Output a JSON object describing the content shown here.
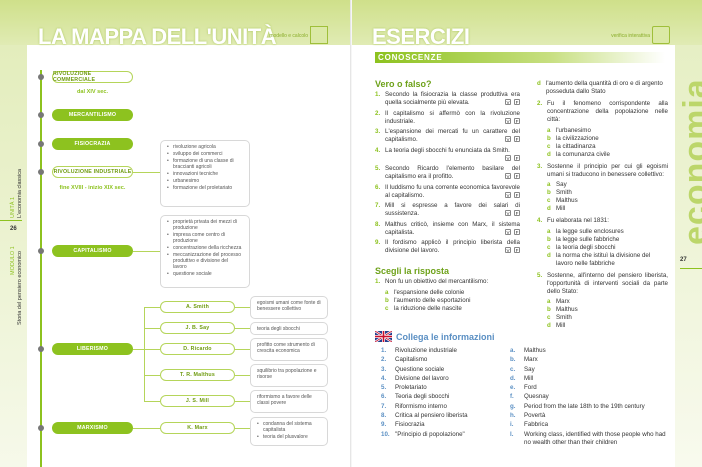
{
  "left": {
    "title": "LA MAPPA DELL'UNITÀ",
    "header_icon_label": "modello e calcolo",
    "page_number": "26",
    "unit": "UNITÀ 1",
    "unit_title": "L'economia classica",
    "module": "MODULO 1",
    "module_title": "Storia del pensiero economico",
    "map": {
      "rivoluzione_commerciale": "RIVOLUZIONE COMMERCIALE",
      "rc_date": "dal XIV sec.",
      "mercantilismo": "MERCANTILISMO",
      "fisiocrazia": "FISIOCRAZIA",
      "rivoluzione_industriale": "RIVOLUZIONE INDUSTRIALE",
      "ri_date": "fine XVIII - inizio XIX sec.",
      "ri_items": [
        "rivoluzione agricola",
        "sviluppo dei commerci",
        "formazione di una classe di braccianti agricoli",
        "innovazioni tecniche",
        "urbanesimo",
        "formazione del proletariato"
      ],
      "capitalismo": "CAPITALISMO",
      "cap_items": [
        "proprietà privata dei mezzi di produzione",
        "impresa come centro di produzione",
        "concentrazione della ricchezza",
        "meccanizzazione del processo produttivo e divisione del lavoro",
        "questione sociale"
      ],
      "liberismo": "LIBERISMO",
      "marxismo": "MARXISMO",
      "authors": [
        {
          "name": "A. Smith",
          "desc": "egoismi umani come fonte di benessere collettivo"
        },
        {
          "name": "J. B. Say",
          "desc": "teoria degli sbocchi"
        },
        {
          "name": "D. Ricardo",
          "desc": "profitto come strumento di crescita economica"
        },
        {
          "name": "T. R. Malthus",
          "desc": "squilibrio tra popolazione e risorse"
        },
        {
          "name": "J. S. Mill",
          "desc": "riformismo a favore delle classi povere"
        }
      ],
      "marx": {
        "name": "K. Marx",
        "items": [
          "condanna del sistema capitalista",
          "teoria del plusvalore"
        ]
      }
    }
  },
  "right": {
    "title": "ESERCIZI",
    "header_icon_label": "verifica interattiva",
    "page_number": "27",
    "margin_word": "economia",
    "section": "CONOSCENZE",
    "vf_title": "Vero o falso?",
    "v": "V",
    "f": "F",
    "vf": [
      {
        "n": "1.",
        "t": "Secondo la fisiocrazia la classe produttiva era quella socialmente più elevata."
      },
      {
        "n": "2.",
        "t": "Il capitalismo si affermò con la rivoluzione industriale."
      },
      {
        "n": "3.",
        "t": "L'espansione dei mercati fu un carattere del capitalismo."
      },
      {
        "n": "4.",
        "t": "La teoria degli sbocchi fu enunciata da Smith."
      },
      {
        "n": "5.",
        "t": "Secondo Ricardo l'elemento basilare del capitalismo era il profitto."
      },
      {
        "n": "6.",
        "t": "Il luddismo fu una corrente economica favorevole al capitalismo."
      },
      {
        "n": "7.",
        "t": "Mill si espresse a favore dei salari di sussistenza."
      },
      {
        "n": "8.",
        "t": "Malthus criticò, insieme con Marx, il sistema capitalista."
      },
      {
        "n": "9.",
        "t": "Il fordismo applicò il principio liberista della divisione del lavoro."
      }
    ],
    "sr_title": "Scegli la risposta",
    "sr": [
      {
        "n": "1.",
        "t": "Non fu un obiettivo del mercantilismo:",
        "opts": [
          {
            "l": "a",
            "t": "l'espansione delle colonie"
          },
          {
            "l": "b",
            "t": "l'aumento delle esportazioni"
          },
          {
            "l": "c",
            "t": "la riduzione delle nascite"
          },
          {
            "l": "d",
            "t": "l'aumento della quantità di oro e di argento posseduta dallo Stato"
          }
        ]
      },
      {
        "n": "2.",
        "t": "Fu il fenomeno corrispondente alla concentrazione della popolazione nelle città:",
        "opts": [
          {
            "l": "a",
            "t": "l'urbanesimo"
          },
          {
            "l": "b",
            "t": "la civilizzazione"
          },
          {
            "l": "c",
            "t": "la cittadinanza"
          },
          {
            "l": "d",
            "t": "la comunanza civile"
          }
        ]
      },
      {
        "n": "3.",
        "t": "Sostenne il principio per cui gli egoismi umani si traducono in benessere collettivo:",
        "opts": [
          {
            "l": "a",
            "t": "Say"
          },
          {
            "l": "b",
            "t": "Smith"
          },
          {
            "l": "c",
            "t": "Malthus"
          },
          {
            "l": "d",
            "t": "Mill"
          }
        ]
      },
      {
        "n": "4.",
        "t": "Fu elaborata nel 1831:",
        "opts": [
          {
            "l": "a",
            "t": "la legge sulle enclosures"
          },
          {
            "l": "b",
            "t": "la legge sulle fabbriche"
          },
          {
            "l": "c",
            "t": "la teoria degli sbocchi"
          },
          {
            "l": "d",
            "t": "la norma che istituì la divisione del lavoro nelle fabbriche"
          }
        ]
      },
      {
        "n": "5.",
        "t": "Sostenne, all'interno del pensiero liberista, l'opportunità di interventi sociali da parte dello Stato:",
        "opts": [
          {
            "l": "a",
            "t": "Marx"
          },
          {
            "l": "b",
            "t": "Malthus"
          },
          {
            "l": "c",
            "t": "Smith"
          },
          {
            "l": "d",
            "t": "Mill"
          }
        ]
      }
    ],
    "cl_title": "Collega le informazioni",
    "cl_left": [
      {
        "n": "1.",
        "t": "Rivoluzione industriale"
      },
      {
        "n": "2.",
        "t": "Capitalismo"
      },
      {
        "n": "3.",
        "t": "Questione sociale"
      },
      {
        "n": "4.",
        "t": "Divisione del lavoro"
      },
      {
        "n": "5.",
        "t": "Proletariato"
      },
      {
        "n": "6.",
        "t": "Teoria degli sbocchi"
      },
      {
        "n": "7.",
        "t": "Riformismo interno"
      },
      {
        "n": "8.",
        "t": "Critica al pensiero liberista"
      },
      {
        "n": "9.",
        "t": "Fisiocrazia"
      },
      {
        "n": "10.",
        "t": "\"Principio di popolazione\""
      }
    ],
    "cl_right": [
      {
        "n": "a.",
        "t": "Malthus"
      },
      {
        "n": "b.",
        "t": "Marx"
      },
      {
        "n": "c.",
        "t": "Say"
      },
      {
        "n": "d.",
        "t": "Mill"
      },
      {
        "n": "e.",
        "t": "Ford"
      },
      {
        "n": "f.",
        "t": "Quesnay"
      },
      {
        "n": "g.",
        "t": "Period from the late 18th to the 19th century"
      },
      {
        "n": "h.",
        "t": "Povertà"
      },
      {
        "n": "i.",
        "t": "Fabbrica"
      },
      {
        "n": "l.",
        "t": "Working class, identified with those people who had no wealth other than their children"
      }
    ]
  }
}
